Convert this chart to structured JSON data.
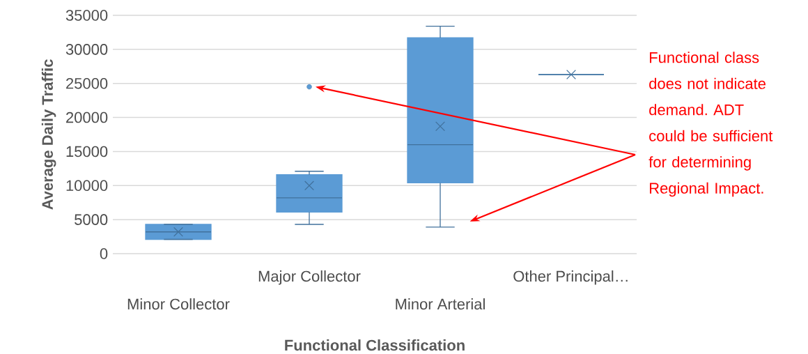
{
  "chart_data": {
    "type": "box",
    "xlabel": "Functional Classification",
    "ylabel": "Average Daily Traffic",
    "categories": [
      "Minor Collector",
      "Major Collector",
      "Minor Arterial",
      "Other Principal…"
    ],
    "boxes": [
      {
        "low": 2100,
        "q1": 2100,
        "median": 3200,
        "q3": 4300,
        "high": 4300,
        "mean": 3200
      },
      {
        "low": 4300,
        "q1": 6100,
        "median": 8200,
        "q3": 11600,
        "high": 12100,
        "mean": 10000,
        "outliers": [
          24500
        ]
      },
      {
        "low": 3900,
        "q1": 10400,
        "median": 16000,
        "q3": 31700,
        "high": 33400,
        "mean": 18700
      },
      {
        "low": 26300,
        "q1": 26300,
        "median": 26300,
        "q3": 26300,
        "high": 26300,
        "mean": 26300
      }
    ],
    "color": "#5b9bd5",
    "ylim": [
      0,
      35000
    ],
    "yticks": [
      0,
      5000,
      10000,
      15000,
      20000,
      25000,
      30000,
      35000
    ],
    "grid": "y",
    "annotations": [
      "Functional class does not indicate demand. ADT could be sufficient for determining Regional Impact."
    ]
  }
}
